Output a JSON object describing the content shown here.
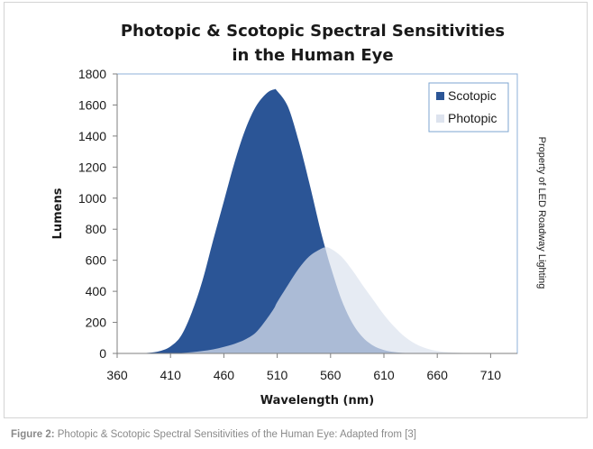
{
  "chart_data": {
    "type": "area",
    "title_lines": [
      "Photopic & Scotopic Spectral Sensitivities",
      "in the Human Eye"
    ],
    "xlabel": "Wavelength (nm)",
    "ylabel": "Lumens",
    "xlim": [
      360,
      735
    ],
    "ylim": [
      0,
      1800
    ],
    "x_ticks": [
      360,
      410,
      460,
      510,
      560,
      610,
      660,
      710
    ],
    "y_ticks": [
      0,
      200,
      400,
      600,
      800,
      1000,
      1200,
      1400,
      1600,
      1800
    ],
    "grid": false,
    "legend_position": "top-right",
    "x": [
      380,
      390,
      400,
      410,
      420,
      430,
      440,
      450,
      460,
      470,
      480,
      490,
      500,
      507,
      510,
      520,
      530,
      540,
      550,
      555,
      560,
      570,
      580,
      590,
      600,
      610,
      620,
      630,
      640,
      650,
      660,
      670,
      680,
      690,
      700,
      710,
      720,
      730
    ],
    "series": [
      {
        "name": "Scotopic",
        "color": "#2b5596",
        "values": [
          1,
          4,
          15,
          45,
          115,
          265,
          470,
          730,
          980,
          1230,
          1440,
          1590,
          1675,
          1700,
          1690,
          1590,
          1370,
          1100,
          810,
          680,
          560,
          350,
          200,
          105,
          50,
          22,
          9,
          3,
          1,
          0,
          0,
          0,
          0,
          0,
          0,
          0,
          0,
          0
        ]
      },
      {
        "name": "Photopic",
        "color": "#dde3ee",
        "values": [
          0,
          0,
          0,
          1,
          3,
          8,
          16,
          26,
          42,
          62,
          90,
          135,
          220,
          290,
          330,
          440,
          545,
          625,
          670,
          683,
          675,
          625,
          540,
          440,
          345,
          250,
          170,
          105,
          60,
          32,
          16,
          8,
          4,
          2,
          1,
          0,
          0,
          0
        ]
      }
    ]
  },
  "watermark": "Property of LED Roadway Lighting",
  "caption": {
    "label": "Figure 2:",
    "text": " Photopic & Scotopic Spectral Sensitivities of the Human Eye: Adapted from [3]"
  }
}
